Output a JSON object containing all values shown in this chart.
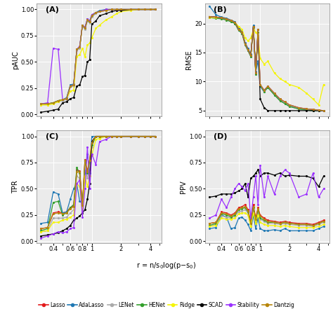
{
  "x_vals": [
    0.3,
    0.35,
    0.4,
    0.45,
    0.5,
    0.55,
    0.6,
    0.65,
    0.7,
    0.75,
    0.8,
    0.85,
    0.9,
    0.95,
    1.0,
    1.1,
    1.2,
    1.4,
    1.6,
    1.8,
    2.0,
    2.5,
    3.0,
    3.5,
    4.0,
    4.5
  ],
  "methods": [
    "Lasso",
    "AdaLasso",
    "LENet",
    "HENet",
    "Ridge",
    "SCAD",
    "Stability",
    "Dantzig"
  ],
  "colors": [
    "#E31A1C",
    "#1F78B4",
    "#AAAAAA",
    "#33A02C",
    "#F5F500",
    "#000000",
    "#9B30FF",
    "#B8860B"
  ],
  "background": "#EBEBEB",
  "pAUC": {
    "Lasso": [
      0.1,
      0.1,
      0.11,
      0.13,
      0.14,
      0.15,
      0.27,
      0.28,
      0.62,
      0.64,
      0.85,
      0.82,
      0.9,
      0.88,
      0.94,
      0.97,
      0.98,
      0.99,
      1.0,
      1.0,
      1.0,
      1.0,
      1.0,
      1.0,
      1.0,
      1.0
    ],
    "AdaLasso": [
      0.1,
      0.1,
      0.11,
      0.13,
      0.14,
      0.16,
      0.28,
      0.29,
      0.62,
      0.64,
      0.85,
      0.83,
      0.91,
      0.89,
      0.95,
      0.97,
      0.99,
      1.0,
      1.0,
      1.0,
      1.0,
      1.0,
      1.0,
      1.0,
      1.0,
      1.0
    ],
    "LENet": [
      0.09,
      0.09,
      0.1,
      0.12,
      0.13,
      0.14,
      0.26,
      0.27,
      0.61,
      0.63,
      0.84,
      0.81,
      0.89,
      0.87,
      0.93,
      0.96,
      0.98,
      0.99,
      1.0,
      1.0,
      1.0,
      1.0,
      1.0,
      1.0,
      1.0,
      1.0
    ],
    "HENet": [
      0.1,
      0.1,
      0.11,
      0.13,
      0.14,
      0.15,
      0.27,
      0.28,
      0.62,
      0.64,
      0.85,
      0.82,
      0.9,
      0.88,
      0.94,
      0.97,
      0.98,
      1.0,
      1.0,
      1.0,
      1.0,
      1.0,
      1.0,
      1.0,
      1.0,
      1.0
    ],
    "Ridge": [
      0.09,
      0.09,
      0.1,
      0.12,
      0.14,
      0.15,
      0.22,
      0.23,
      0.55,
      0.57,
      0.63,
      0.55,
      0.66,
      0.68,
      0.73,
      0.82,
      0.85,
      0.9,
      0.93,
      0.96,
      0.98,
      0.99,
      1.0,
      1.0,
      1.0,
      1.0
    ],
    "SCAD": [
      0.02,
      0.03,
      0.04,
      0.05,
      0.11,
      0.12,
      0.15,
      0.16,
      0.27,
      0.28,
      0.36,
      0.37,
      0.5,
      0.52,
      0.86,
      0.89,
      0.94,
      0.96,
      0.98,
      0.99,
      0.99,
      1.0,
      1.0,
      1.0,
      1.0,
      1.0
    ],
    "Stability": [
      0.1,
      0.11,
      0.63,
      0.62,
      0.14,
      0.15,
      0.27,
      0.28,
      0.62,
      0.65,
      0.85,
      0.83,
      0.91,
      0.89,
      0.95,
      0.97,
      0.98,
      1.0,
      1.0,
      1.0,
      1.0,
      1.0,
      1.0,
      1.0,
      1.0,
      1.0
    ],
    "Dantzig": [
      0.1,
      0.1,
      0.11,
      0.13,
      0.14,
      0.15,
      0.27,
      0.28,
      0.62,
      0.64,
      0.85,
      0.82,
      0.9,
      0.88,
      0.94,
      0.97,
      0.98,
      0.99,
      1.0,
      1.0,
      1.0,
      1.0,
      1.0,
      1.0,
      1.0,
      1.0
    ]
  },
  "RMSE": {
    "Lasso": [
      21.2,
      21.1,
      21.0,
      20.8,
      20.5,
      20.2,
      19.0,
      18.5,
      16.5,
      15.5,
      14.5,
      19.5,
      11.5,
      19.0,
      9.5,
      8.5,
      9.2,
      8.0,
      7.0,
      6.5,
      6.0,
      5.5,
      5.3,
      5.2,
      5.1,
      5.0
    ],
    "AdaLasso": [
      23.0,
      21.5,
      21.1,
      20.9,
      20.6,
      20.3,
      19.2,
      18.7,
      16.7,
      15.7,
      14.7,
      19.7,
      11.7,
      13.5,
      9.2,
      8.2,
      9.0,
      7.8,
      6.8,
      6.2,
      5.8,
      5.3,
      5.1,
      5.0,
      5.0,
      5.0
    ],
    "LENet": [
      21.0,
      20.9,
      20.8,
      20.6,
      20.3,
      20.0,
      18.8,
      18.3,
      16.3,
      15.3,
      14.3,
      19.3,
      11.3,
      18.5,
      9.3,
      8.3,
      9.0,
      7.7,
      6.7,
      6.2,
      5.7,
      5.3,
      5.1,
      5.0,
      5.0,
      5.0
    ],
    "HENet": [
      21.0,
      20.9,
      20.8,
      20.6,
      20.3,
      20.0,
      18.8,
      18.3,
      16.3,
      15.3,
      14.3,
      19.3,
      11.3,
      18.5,
      9.3,
      8.3,
      9.0,
      7.7,
      6.7,
      6.2,
      5.7,
      5.3,
      5.1,
      5.0,
      5.0,
      5.0
    ],
    "Ridge": [
      21.0,
      21.0,
      21.0,
      20.8,
      20.5,
      20.2,
      19.5,
      19.0,
      17.5,
      17.0,
      17.5,
      19.0,
      18.5,
      18.0,
      14.0,
      13.0,
      13.5,
      11.5,
      10.5,
      10.0,
      9.5,
      9.0,
      8.0,
      7.0,
      6.0,
      9.5
    ],
    "SCAD": [
      21.2,
      21.1,
      21.0,
      20.8,
      20.5,
      20.2,
      19.0,
      18.5,
      16.5,
      15.5,
      14.5,
      19.5,
      11.5,
      19.0,
      7.0,
      5.5,
      5.0,
      5.0,
      5.0,
      5.0,
      5.0,
      5.0,
      5.0,
      5.0,
      5.0,
      5.0
    ],
    "Stability": [
      21.2,
      21.1,
      21.0,
      20.8,
      20.5,
      20.2,
      19.0,
      18.5,
      16.5,
      15.5,
      14.5,
      19.5,
      11.5,
      19.0,
      9.5,
      8.5,
      9.2,
      8.0,
      7.0,
      6.5,
      6.0,
      5.5,
      5.3,
      5.2,
      5.1,
      5.0
    ],
    "Dantzig": [
      21.2,
      21.1,
      21.0,
      20.8,
      20.5,
      20.2,
      19.0,
      18.5,
      16.5,
      15.5,
      14.5,
      19.5,
      11.5,
      19.0,
      9.5,
      8.5,
      9.2,
      8.0,
      7.0,
      6.5,
      6.0,
      5.5,
      5.3,
      5.2,
      5.1,
      5.0
    ]
  },
  "TPR": {
    "Lasso": [
      0.12,
      0.13,
      0.27,
      0.28,
      0.27,
      0.28,
      0.32,
      0.34,
      0.68,
      0.67,
      0.35,
      0.78,
      0.67,
      0.78,
      0.95,
      1.0,
      1.0,
      1.0,
      1.0,
      1.0,
      1.0,
      1.0,
      1.0,
      1.0,
      1.0,
      1.0
    ],
    "AdaLasso": [
      0.17,
      0.18,
      0.47,
      0.45,
      0.27,
      0.28,
      0.4,
      0.5,
      0.55,
      0.38,
      0.36,
      0.65,
      0.83,
      0.65,
      1.0,
      1.0,
      1.0,
      1.0,
      1.0,
      1.0,
      1.0,
      1.0,
      1.0,
      1.0,
      1.0,
      1.0
    ],
    "LENet": [
      0.09,
      0.1,
      0.22,
      0.22,
      0.22,
      0.23,
      0.27,
      0.3,
      0.62,
      0.6,
      0.3,
      0.72,
      0.6,
      0.72,
      0.9,
      1.0,
      1.0,
      1.0,
      1.0,
      1.0,
      1.0,
      1.0,
      1.0,
      1.0,
      1.0,
      1.0
    ],
    "HENet": [
      0.1,
      0.12,
      0.37,
      0.38,
      0.25,
      0.27,
      0.32,
      0.35,
      0.7,
      0.65,
      0.33,
      0.77,
      0.65,
      0.77,
      0.92,
      1.0,
      1.0,
      1.0,
      1.0,
      1.0,
      1.0,
      1.0,
      1.0,
      1.0,
      1.0,
      1.0
    ],
    "Ridge": [
      0.09,
      0.1,
      0.18,
      0.18,
      0.2,
      0.21,
      0.23,
      0.25,
      0.55,
      0.52,
      0.27,
      0.62,
      0.52,
      0.62,
      0.82,
      0.97,
      0.98,
      1.0,
      1.0,
      1.0,
      1.0,
      1.0,
      1.0,
      1.0,
      1.0,
      1.0
    ],
    "SCAD": [
      0.05,
      0.06,
      0.07,
      0.08,
      0.1,
      0.12,
      0.15,
      0.2,
      0.22,
      0.24,
      0.27,
      0.3,
      0.4,
      0.55,
      0.95,
      1.0,
      1.0,
      1.0,
      1.0,
      1.0,
      1.0,
      1.0,
      1.0,
      1.0,
      1.0,
      1.0
    ],
    "Stability": [
      0.03,
      0.05,
      0.07,
      0.09,
      0.08,
      0.09,
      0.12,
      0.13,
      0.55,
      0.58,
      0.23,
      0.5,
      0.9,
      0.5,
      0.83,
      0.73,
      0.95,
      0.97,
      1.0,
      1.0,
      1.0,
      1.0,
      1.0,
      1.0,
      1.0,
      1.0
    ],
    "Dantzig": [
      0.12,
      0.13,
      0.26,
      0.27,
      0.26,
      0.27,
      0.31,
      0.33,
      0.66,
      0.66,
      0.34,
      0.77,
      0.66,
      0.77,
      0.94,
      1.0,
      1.0,
      1.0,
      1.0,
      1.0,
      1.0,
      1.0,
      1.0,
      1.0,
      1.0,
      1.0
    ]
  },
  "PPV": {
    "Lasso": [
      0.17,
      0.18,
      0.28,
      0.27,
      0.25,
      0.27,
      0.32,
      0.33,
      0.35,
      0.3,
      0.18,
      0.35,
      0.22,
      0.32,
      0.25,
      0.22,
      0.2,
      0.19,
      0.18,
      0.19,
      0.18,
      0.17,
      0.17,
      0.16,
      0.18,
      0.2
    ],
    "AdaLasso": [
      0.12,
      0.13,
      0.25,
      0.23,
      0.12,
      0.13,
      0.22,
      0.23,
      0.2,
      0.16,
      0.1,
      0.25,
      0.12,
      0.22,
      0.12,
      0.1,
      0.1,
      0.11,
      0.1,
      0.12,
      0.1,
      0.1,
      0.1,
      0.1,
      0.12,
      0.14
    ],
    "LENet": [
      0.15,
      0.16,
      0.24,
      0.23,
      0.22,
      0.24,
      0.28,
      0.29,
      0.3,
      0.27,
      0.16,
      0.3,
      0.19,
      0.28,
      0.21,
      0.19,
      0.17,
      0.17,
      0.16,
      0.17,
      0.16,
      0.15,
      0.15,
      0.14,
      0.16,
      0.18
    ],
    "HENet": [
      0.15,
      0.17,
      0.26,
      0.25,
      0.23,
      0.25,
      0.3,
      0.31,
      0.32,
      0.28,
      0.17,
      0.32,
      0.2,
      0.3,
      0.22,
      0.2,
      0.18,
      0.18,
      0.17,
      0.18,
      0.17,
      0.16,
      0.16,
      0.15,
      0.17,
      0.19
    ],
    "Ridge": [
      0.14,
      0.15,
      0.22,
      0.21,
      0.21,
      0.22,
      0.26,
      0.27,
      0.27,
      0.25,
      0.14,
      0.27,
      0.17,
      0.25,
      0.18,
      0.16,
      0.15,
      0.15,
      0.14,
      0.15,
      0.14,
      0.13,
      0.13,
      0.13,
      0.14,
      0.16
    ],
    "SCAD": [
      0.42,
      0.43,
      0.45,
      0.45,
      0.45,
      0.46,
      0.48,
      0.5,
      0.55,
      0.42,
      0.6,
      0.62,
      0.65,
      0.68,
      0.62,
      0.65,
      0.65,
      0.63,
      0.65,
      0.62,
      0.63,
      0.62,
      0.62,
      0.6,
      0.52,
      0.62
    ],
    "Stability": [
      0.22,
      0.25,
      0.4,
      0.32,
      0.42,
      0.5,
      0.55,
      0.52,
      0.48,
      0.55,
      0.22,
      0.42,
      0.62,
      0.35,
      0.72,
      0.42,
      0.62,
      0.45,
      0.62,
      0.68,
      0.65,
      0.42,
      0.45,
      0.65,
      0.42,
      0.5
    ],
    "Dantzig": [
      0.17,
      0.18,
      0.27,
      0.26,
      0.24,
      0.26,
      0.31,
      0.32,
      0.33,
      0.29,
      0.17,
      0.33,
      0.21,
      0.31,
      0.24,
      0.21,
      0.19,
      0.18,
      0.17,
      0.18,
      0.17,
      0.16,
      0.16,
      0.15,
      0.17,
      0.19
    ]
  }
}
